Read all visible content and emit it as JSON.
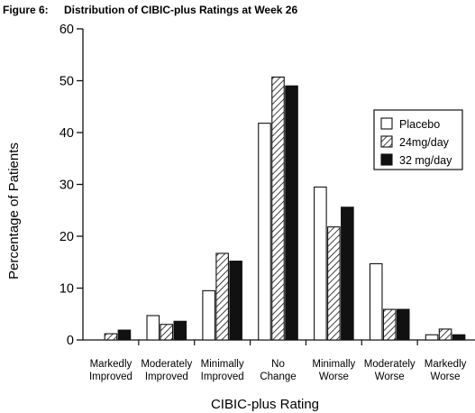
{
  "figure": {
    "number_label": "Figure 6:",
    "title": "Distribution of CIBIC-plus Ratings at Week 26"
  },
  "chart_data": {
    "type": "bar",
    "title": "Distribution of CIBIC-plus Ratings at Week 26",
    "xlabel": "CIBIC-plus Rating",
    "ylabel": "Percentage of Patients",
    "ylim": [
      0,
      60
    ],
    "yticks": [
      0,
      10,
      20,
      30,
      40,
      50,
      60
    ],
    "grid": false,
    "legend_position": "right",
    "categories": [
      [
        "Markedly",
        "Improved"
      ],
      [
        "Moderately",
        "Improved"
      ],
      [
        "Minimally",
        "Improved"
      ],
      [
        "No",
        "Change"
      ],
      [
        "Minimally",
        "Worse"
      ],
      [
        "Moderately",
        "Worse"
      ],
      [
        "Markedly",
        "Worse"
      ]
    ],
    "series": [
      {
        "name": "Placebo",
        "fill": "white",
        "values": [
          0,
          4.7,
          9.5,
          41.8,
          29.5,
          14.7,
          1.0
        ]
      },
      {
        "name": "24mg/day",
        "fill": "hatched",
        "values": [
          1.2,
          3.0,
          16.7,
          50.7,
          21.8,
          5.9,
          2.1
        ]
      },
      {
        "name": "32 mg/day",
        "fill": "black",
        "values": [
          1.9,
          3.6,
          15.2,
          49.0,
          25.6,
          5.9,
          1.0
        ]
      }
    ]
  }
}
